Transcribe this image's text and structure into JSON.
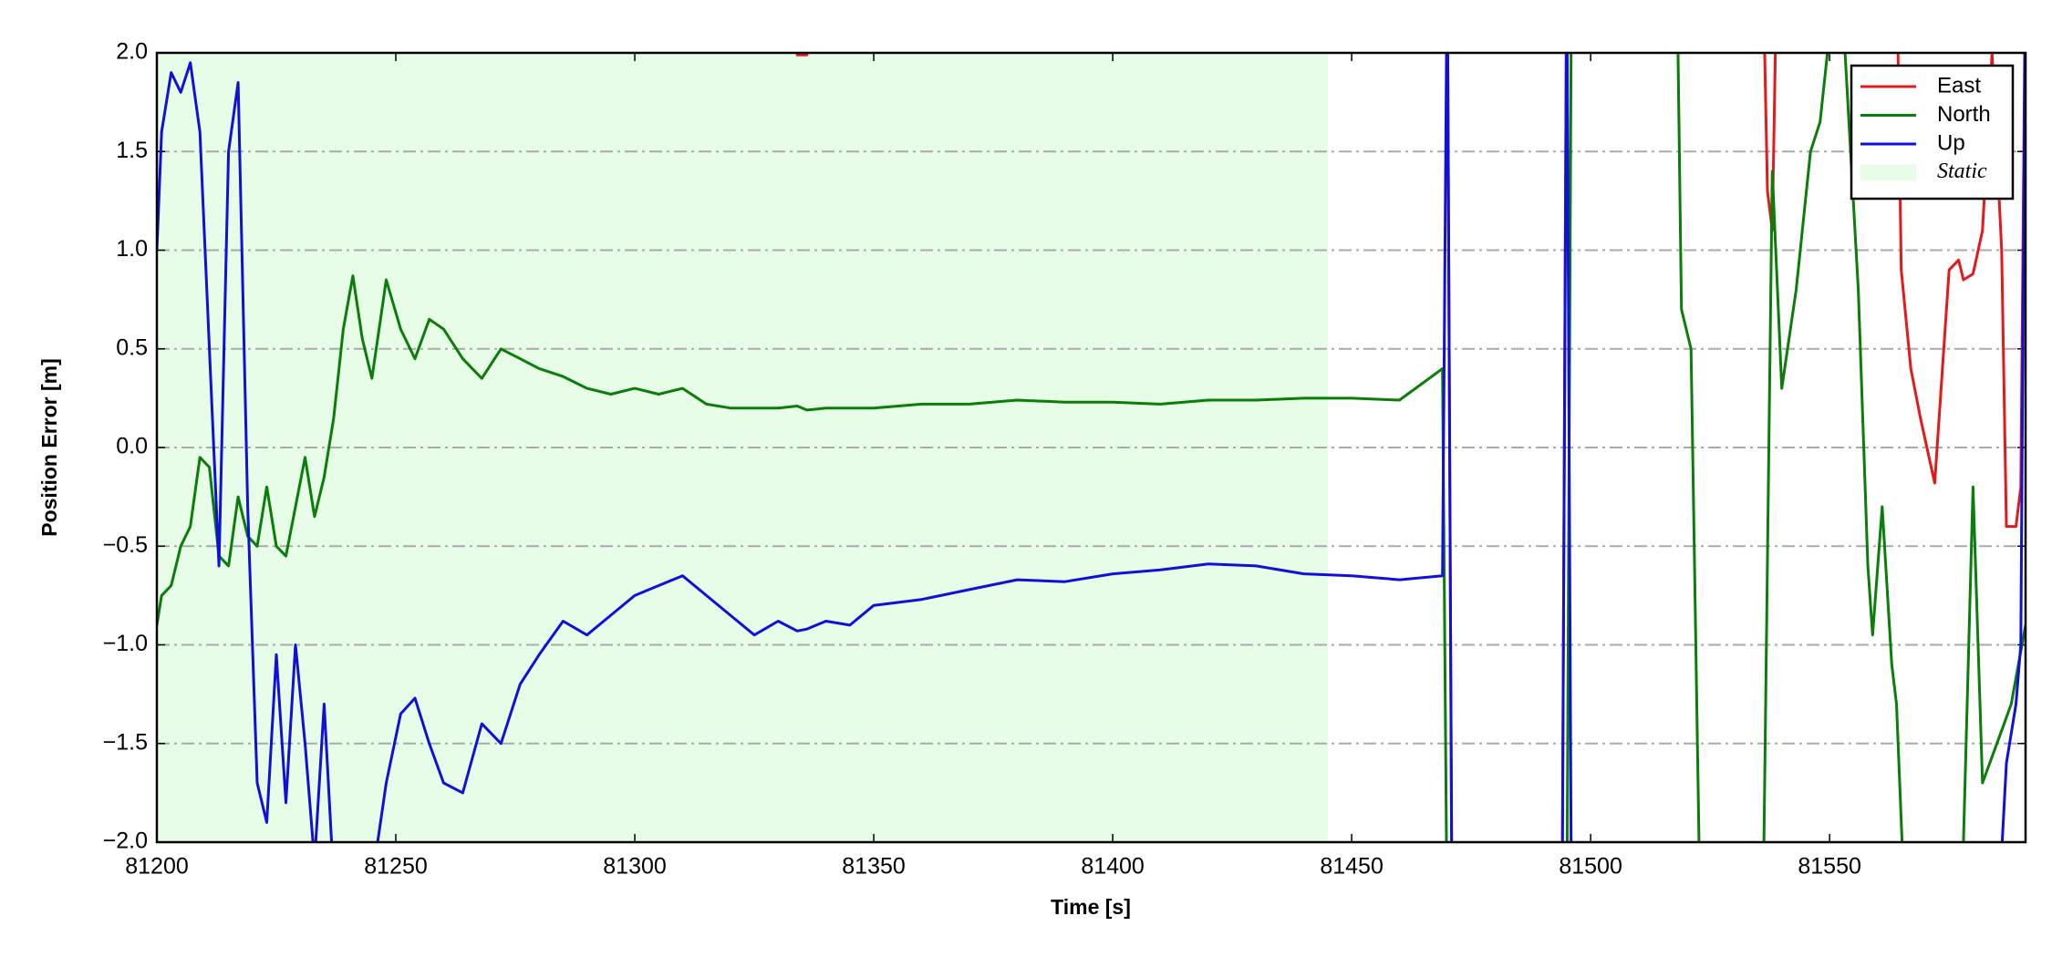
{
  "chart_data": {
    "type": "line",
    "xlabel": "Time [s]",
    "ylabel": "Position Error [m]",
    "xlim": [
      81200,
      81591
    ],
    "ylim": [
      -2,
      2
    ],
    "xticks": [
      81200,
      81250,
      81300,
      81350,
      81400,
      81450,
      81500,
      81550
    ],
    "yticks": [
      {
        "value": -2,
        "label": "−2.0"
      },
      {
        "value": -1.5,
        "label": "−1.5"
      },
      {
        "value": -1,
        "label": "−1.0"
      },
      {
        "value": -0.5,
        "label": "−0.5"
      },
      {
        "value": 0,
        "label": "0.0"
      },
      {
        "value": 0.5,
        "label": "0.5"
      },
      {
        "value": 1,
        "label": "1.0"
      },
      {
        "value": 1.5,
        "label": "1.5"
      },
      {
        "value": 2,
        "label": "2.0"
      }
    ],
    "grid": true,
    "legend": "upper right",
    "static_region": {
      "name": "Static",
      "range": [
        81200,
        81445
      ],
      "color": "#e8fde8"
    },
    "series": [
      {
        "name": "East",
        "color": "#e41a1a",
        "x": [
          81200,
          81333,
          81334,
          81336,
          81337,
          81470,
          81471,
          81494,
          81495,
          81536,
          81537,
          81538,
          81539,
          81564,
          81565,
          81567,
          81569,
          81572,
          81575,
          81577,
          81578,
          81580,
          81582,
          81584,
          81586,
          81587,
          81589,
          81590,
          81591
        ],
        "values": [
          2.5,
          2.2,
          1.99,
          1.99,
          2.2,
          2.5,
          -2.5,
          -2.5,
          2.5,
          2.5,
          1.3,
          1.1,
          2.5,
          2.5,
          0.9,
          0.4,
          0.15,
          -0.18,
          0.9,
          0.95,
          0.85,
          0.88,
          1.1,
          2.0,
          1.0,
          -0.4,
          -0.4,
          -0.2,
          2.5
        ]
      },
      {
        "name": "North",
        "color": "#0a7d0a",
        "x": [
          81200,
          81201,
          81203,
          81205,
          81207,
          81209,
          81211,
          81213,
          81215,
          81217,
          81219,
          81221,
          81223,
          81225,
          81227,
          81229,
          81231,
          81233,
          81235,
          81237,
          81239,
          81241,
          81243,
          81245,
          81248,
          81251,
          81254,
          81257,
          81260,
          81264,
          81268,
          81272,
          81276,
          81280,
          81285,
          81290,
          81295,
          81300,
          81305,
          81310,
          81315,
          81320,
          81325,
          81330,
          81334,
          81336,
          81340,
          81345,
          81350,
          81360,
          81370,
          81380,
          81390,
          81400,
          81410,
          81420,
          81430,
          81440,
          81450,
          81460,
          81469,
          81470,
          81495,
          81496,
          81518,
          81519,
          81521,
          81523,
          81536,
          81538,
          81540,
          81543,
          81546,
          81548,
          81550,
          81553,
          81556,
          81558,
          81559,
          81561,
          81563,
          81564,
          81566,
          81578,
          81580,
          81582,
          81585,
          81588,
          81591
        ],
        "values": [
          -0.9,
          -0.75,
          -0.7,
          -0.5,
          -0.4,
          -0.05,
          -0.1,
          -0.55,
          -0.6,
          -0.25,
          -0.45,
          -0.5,
          -0.2,
          -0.5,
          -0.55,
          -0.3,
          -0.05,
          -0.35,
          -0.15,
          0.15,
          0.6,
          0.87,
          0.55,
          0.35,
          0.85,
          0.6,
          0.45,
          0.65,
          0.6,
          0.45,
          0.35,
          0.5,
          0.45,
          0.4,
          0.36,
          0.3,
          0.27,
          0.3,
          0.27,
          0.3,
          0.22,
          0.2,
          0.2,
          0.2,
          0.21,
          0.19,
          0.2,
          0.2,
          0.2,
          0.22,
          0.22,
          0.24,
          0.23,
          0.23,
          0.22,
          0.24,
          0.24,
          0.25,
          0.25,
          0.24,
          0.4,
          -2.5,
          -2.5,
          2.5,
          2.5,
          0.7,
          0.5,
          -2.5,
          -2.5,
          1.4,
          0.3,
          0.8,
          1.5,
          1.65,
          2.1,
          2.1,
          0.8,
          -0.6,
          -0.95,
          -0.3,
          -1.1,
          -1.3,
          -2.5,
          -2.0,
          -0.2,
          -1.7,
          -1.5,
          -1.3,
          -0.9
        ]
      },
      {
        "name": "Up",
        "color": "#1010d8",
        "x": [
          81200,
          81201,
          81203,
          81205,
          81207,
          81209,
          81211,
          81213,
          81215,
          81217,
          81219,
          81221,
          81223,
          81225,
          81227,
          81229,
          81231,
          81233,
          81235,
          81237,
          81239,
          81241,
          81243,
          81245,
          81248,
          81251,
          81254,
          81257,
          81260,
          81264,
          81268,
          81272,
          81276,
          81280,
          81285,
          81290,
          81295,
          81300,
          81305,
          81310,
          81315,
          81320,
          81325,
          81330,
          81334,
          81336,
          81340,
          81345,
          81350,
          81360,
          81370,
          81380,
          81390,
          81400,
          81410,
          81420,
          81430,
          81440,
          81450,
          81460,
          81469,
          81470,
          81471,
          81494,
          81495,
          81496,
          81585,
          81587,
          81589,
          81590,
          81591
        ],
        "values": [
          1.0,
          1.6,
          1.9,
          1.8,
          1.95,
          1.6,
          0.5,
          -0.6,
          1.5,
          1.85,
          -0.3,
          -1.7,
          -1.9,
          -1.05,
          -1.8,
          -1.0,
          -1.5,
          -2.1,
          -1.3,
          -2.2,
          -2.3,
          -2.1,
          -2.05,
          -2.2,
          -1.7,
          -1.35,
          -1.27,
          -1.5,
          -1.7,
          -1.75,
          -1.4,
          -1.5,
          -1.2,
          -1.05,
          -0.88,
          -0.95,
          -0.85,
          -0.75,
          -0.7,
          -0.65,
          -0.75,
          -0.85,
          -0.95,
          -0.88,
          -0.93,
          -0.92,
          -0.88,
          -0.9,
          -0.8,
          -0.77,
          -0.72,
          -0.67,
          -0.68,
          -0.64,
          -0.62,
          -0.59,
          -0.6,
          -0.64,
          -0.65,
          -0.67,
          -0.65,
          2.5,
          -2.5,
          -2.5,
          2.5,
          -2.5,
          -2.5,
          -1.6,
          -1.3,
          -1.0,
          2.5
        ]
      }
    ]
  }
}
